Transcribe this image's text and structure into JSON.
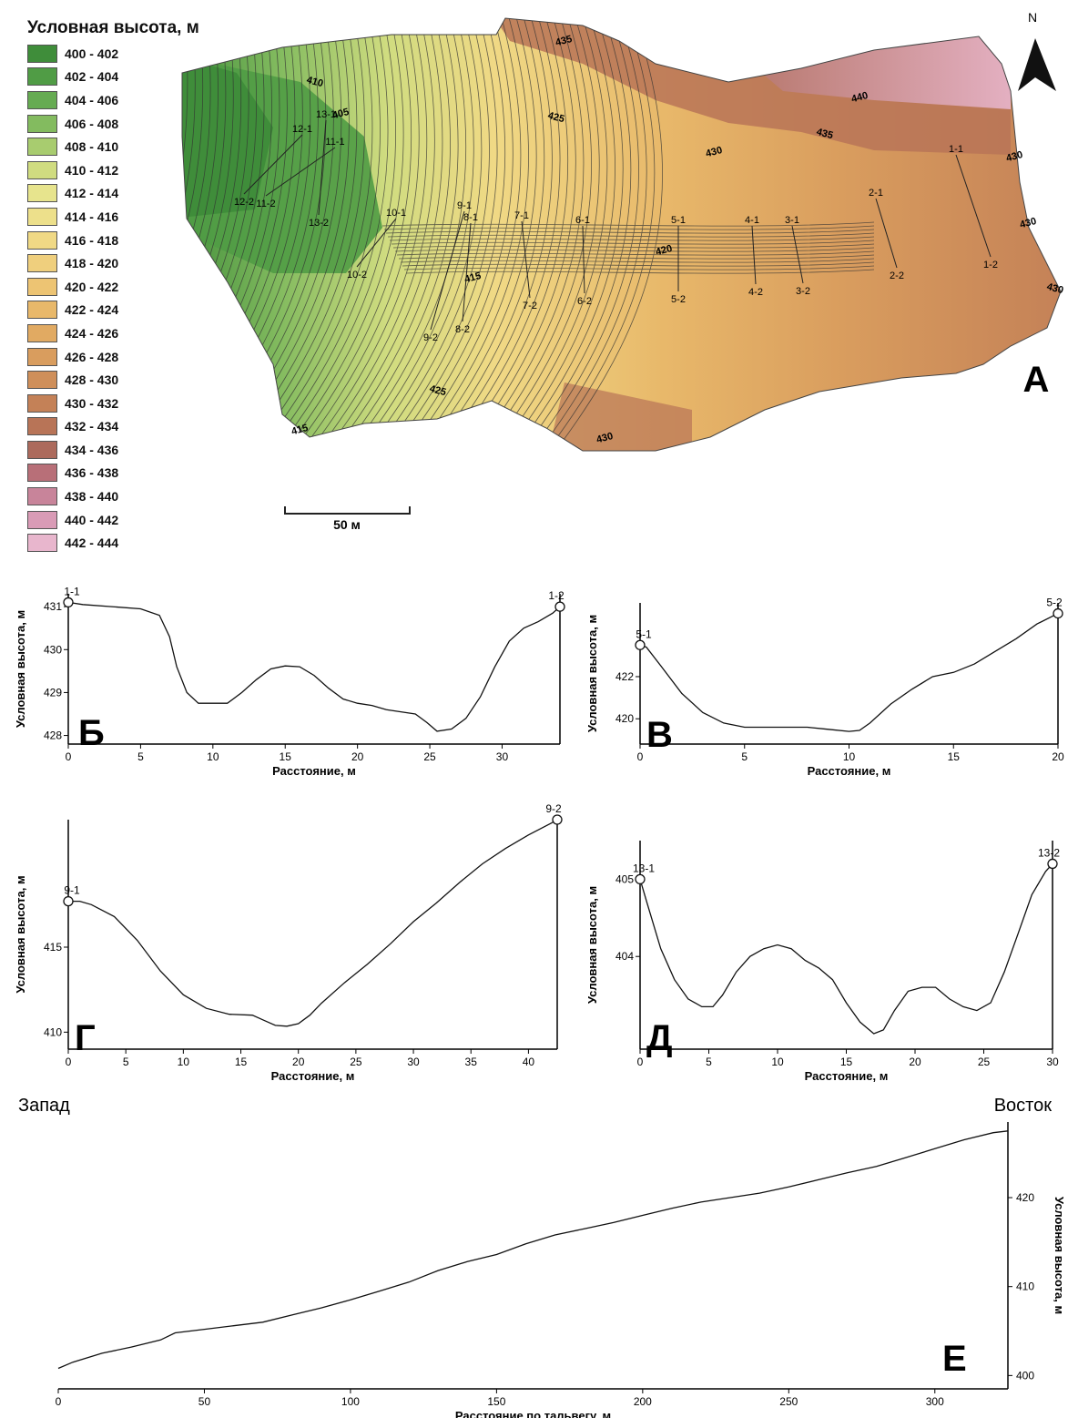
{
  "legend": {
    "title": "Условная высота, м",
    "items": [
      {
        "label": "400 - 402",
        "color": "#3f8d3a"
      },
      {
        "label": "402 - 404",
        "color": "#509c45"
      },
      {
        "label": "404 - 406",
        "color": "#66ab52"
      },
      {
        "label": "406 - 408",
        "color": "#83bb5f"
      },
      {
        "label": "408 - 410",
        "color": "#a8cc6f"
      },
      {
        "label": "410 - 412",
        "color": "#d0dc80"
      },
      {
        "label": "412 - 414",
        "color": "#e7e48d"
      },
      {
        "label": "414 - 416",
        "color": "#ede08b"
      },
      {
        "label": "416 - 418",
        "color": "#f0d985"
      },
      {
        "label": "418 - 420",
        "color": "#efcf7d"
      },
      {
        "label": "420 - 422",
        "color": "#edc473"
      },
      {
        "label": "422 - 424",
        "color": "#e8b86a"
      },
      {
        "label": "424 - 426",
        "color": "#e1aa62"
      },
      {
        "label": "426 - 428",
        "color": "#d99d5e"
      },
      {
        "label": "428 - 430",
        "color": "#cf8f5a"
      },
      {
        "label": "430 - 432",
        "color": "#c48157"
      },
      {
        "label": "432 - 434",
        "color": "#b87457"
      },
      {
        "label": "434 - 436",
        "color": "#ac6a5c"
      },
      {
        "label": "436 - 438",
        "color": "#b86f78"
      },
      {
        "label": "438 - 440",
        "color": "#c8849a"
      },
      {
        "label": "440 - 442",
        "color": "#d99bb6"
      },
      {
        "label": "442 - 444",
        "color": "#e8b6cd"
      }
    ]
  },
  "map": {
    "letter": "А",
    "north": "N",
    "scale_label": "50 м",
    "contour_labels": [
      "410",
      "405",
      "435",
      "425",
      "430",
      "440",
      "435",
      "430",
      "430",
      "430",
      "420",
      "415",
      "425",
      "415",
      "430"
    ],
    "profile_lines": [
      {
        "a": "1-1",
        "b": "1-2"
      },
      {
        "a": "2-1",
        "b": "2-2"
      },
      {
        "a": "3-1",
        "b": "3-2"
      },
      {
        "a": "4-1",
        "b": "4-2"
      },
      {
        "a": "5-1",
        "b": "5-2"
      },
      {
        "a": "6-1",
        "b": "6-2"
      },
      {
        "a": "7-1",
        "b": "7-2"
      },
      {
        "a": "8-1",
        "b": "8-2"
      },
      {
        "a": "9-1",
        "b": "9-2"
      },
      {
        "a": "10-1",
        "b": "10-2"
      },
      {
        "a": "11-1",
        "b": "11-2"
      },
      {
        "a": "12-1",
        "b": "12-2"
      },
      {
        "a": "13-1",
        "b": "13-2"
      }
    ]
  },
  "chart_data": [
    {
      "type": "line",
      "panel": "Б",
      "xlabel": "Расстояние, м",
      "ylabel": "Условная высота, м",
      "xlim": [
        0,
        34
      ],
      "ylim": [
        427.8,
        431.3
      ],
      "xticks": [
        "0",
        "5",
        "10",
        "15",
        "20",
        "25",
        "30"
      ],
      "yticks": [
        "428",
        "429",
        "430",
        "431"
      ],
      "endpoints": [
        "1-1",
        "1-2"
      ],
      "x": [
        0,
        1,
        3,
        5,
        6.3,
        7,
        7.5,
        8.2,
        9,
        10,
        11,
        12,
        13,
        14,
        15,
        16,
        17,
        18,
        19,
        20,
        21,
        22,
        23,
        24,
        24.8,
        25.5,
        26.5,
        27.5,
        28.5,
        29.5,
        30.5,
        31.5,
        32.5,
        33.5,
        34
      ],
      "y": [
        431.1,
        431.05,
        431.0,
        430.95,
        430.8,
        430.3,
        429.6,
        429.0,
        428.75,
        428.75,
        428.75,
        429.0,
        429.3,
        429.55,
        429.62,
        429.6,
        429.4,
        429.1,
        428.85,
        428.75,
        428.7,
        428.6,
        428.55,
        428.5,
        428.3,
        428.1,
        428.15,
        428.4,
        428.9,
        429.6,
        430.2,
        430.5,
        430.65,
        430.85,
        431.0
      ]
    },
    {
      "type": "line",
      "panel": "В",
      "xlabel": "Расстояние, м",
      "ylabel": "Условная высота, м",
      "xlim": [
        0,
        20
      ],
      "ylim": [
        418.8,
        425.5
      ],
      "xticks": [
        "0",
        "5",
        "10",
        "15",
        "20"
      ],
      "yticks": [
        "420",
        "422"
      ],
      "endpoints": [
        "5-1",
        "5-2"
      ],
      "x": [
        0,
        0.3,
        1,
        2,
        3,
        4,
        5,
        6,
        7,
        8,
        9,
        10,
        10.5,
        11,
        12,
        13,
        14,
        15,
        16,
        17,
        18,
        19,
        20
      ],
      "y": [
        423.5,
        423.4,
        422.5,
        421.2,
        420.3,
        419.8,
        419.6,
        419.6,
        419.6,
        419.6,
        419.5,
        419.4,
        419.45,
        419.8,
        420.7,
        421.4,
        422.0,
        422.2,
        422.6,
        423.2,
        423.8,
        424.5,
        425.0
      ]
    },
    {
      "type": "line",
      "panel": "Г",
      "xlabel": "Расстояние, м",
      "ylabel": "Условная высота, м",
      "xlim": [
        0,
        42.5
      ],
      "ylim": [
        409,
        422.5
      ],
      "xticks": [
        "0",
        "5",
        "10",
        "15",
        "20",
        "25",
        "30",
        "35",
        "40"
      ],
      "yticks": [
        "410",
        "415"
      ],
      "endpoints": [
        "9-1",
        "9-2"
      ],
      "x": [
        0,
        1,
        2,
        4,
        6,
        8,
        10,
        12,
        14,
        16,
        17,
        18,
        19,
        20,
        21,
        22,
        24,
        26,
        28,
        30,
        32,
        34,
        36,
        38,
        40,
        42,
        42.5
      ],
      "y": [
        417.7,
        417.7,
        417.5,
        416.8,
        415.4,
        413.6,
        412.2,
        411.4,
        411.05,
        411.0,
        410.7,
        410.4,
        410.35,
        410.5,
        411.0,
        411.7,
        412.9,
        414.0,
        415.2,
        416.5,
        417.6,
        418.8,
        419.9,
        420.8,
        421.6,
        422.3,
        422.5
      ]
    },
    {
      "type": "line",
      "panel": "Д",
      "xlabel": "Расстояние, м",
      "ylabel": "Условная высота, м",
      "xlim": [
        0,
        30
      ],
      "ylim": [
        402.8,
        405.5
      ],
      "xticks": [
        "0",
        "5",
        "10",
        "15",
        "20",
        "25",
        "30"
      ],
      "yticks": [
        "404",
        "405"
      ],
      "endpoints": [
        "13-1",
        "13-2"
      ],
      "x": [
        0,
        0.5,
        1.5,
        2.5,
        3.5,
        4.5,
        5.3,
        6,
        7,
        8,
        9,
        10,
        11,
        12,
        13,
        14,
        15,
        16,
        17,
        17.7,
        18.5,
        19.5,
        20.5,
        21.5,
        22.5,
        23.5,
        24.5,
        25.5,
        26.5,
        27.5,
        28.5,
        29.5,
        30
      ],
      "y": [
        405.0,
        404.7,
        404.1,
        403.7,
        403.45,
        403.35,
        403.35,
        403.5,
        403.8,
        404.0,
        404.1,
        404.15,
        404.1,
        403.95,
        403.85,
        403.7,
        403.4,
        403.15,
        403.0,
        403.05,
        403.3,
        403.55,
        403.6,
        403.6,
        403.45,
        403.35,
        403.3,
        403.4,
        403.8,
        404.3,
        404.8,
        405.1,
        405.2
      ]
    },
    {
      "type": "line",
      "panel": "Е",
      "xlabel": "Расстояние по тальвегу, м",
      "ylabel": "Условная высота, м",
      "left_label": "Запад",
      "right_label": "Восток",
      "xlim": [
        0,
        325
      ],
      "ylim": [
        398.5,
        428.5
      ],
      "xticks": [
        "0",
        "50",
        "100",
        "150",
        "200",
        "250",
        "300"
      ],
      "yticks": [
        "400",
        "410",
        "420"
      ],
      "x": [
        0,
        5,
        15,
        25,
        35,
        40,
        50,
        60,
        70,
        80,
        90,
        100,
        110,
        120,
        130,
        140,
        150,
        160,
        170,
        180,
        190,
        200,
        210,
        220,
        230,
        240,
        250,
        260,
        270,
        280,
        290,
        300,
        310,
        320,
        325
      ],
      "y": [
        400.8,
        401.5,
        402.5,
        403.2,
        404.0,
        404.8,
        405.2,
        405.6,
        406.0,
        406.8,
        407.6,
        408.5,
        409.5,
        410.5,
        411.8,
        412.8,
        413.6,
        414.8,
        415.8,
        416.5,
        417.2,
        418.0,
        418.8,
        419.5,
        420.0,
        420.5,
        421.2,
        422.0,
        422.8,
        423.5,
        424.5,
        425.5,
        426.5,
        427.3,
        427.5
      ]
    }
  ]
}
